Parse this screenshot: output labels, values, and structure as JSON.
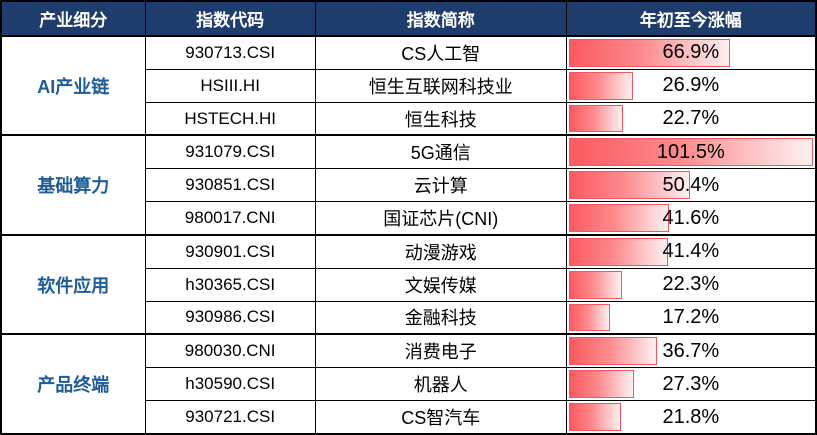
{
  "table": {
    "headers": [
      "产业细分",
      "指数代码",
      "指数简称",
      "年初至今涨幅"
    ],
    "bar_max": 101.5,
    "groups": [
      {
        "label": "AI产业链",
        "rows": [
          {
            "code": "930713.CSI",
            "name": "CS人工智",
            "change": "66.9%",
            "value": 66.9
          },
          {
            "code": "HSIII.HI",
            "name": "恒生互联网科技业",
            "change": "26.9%",
            "value": 26.9
          },
          {
            "code": "HSTECH.HI",
            "name": "恒生科技",
            "change": "22.7%",
            "value": 22.7
          }
        ]
      },
      {
        "label": "基础算力",
        "rows": [
          {
            "code": "931079.CSI",
            "name": "5G通信",
            "change": "101.5%",
            "value": 101.5
          },
          {
            "code": "930851.CSI",
            "name": "云计算",
            "change": "50.4%",
            "value": 50.4
          },
          {
            "code": "980017.CNI",
            "name": "国证芯片(CNI)",
            "change": "41.6%",
            "value": 41.6
          }
        ]
      },
      {
        "label": "软件应用",
        "rows": [
          {
            "code": "930901.CSI",
            "name": "动漫游戏",
            "change": "41.4%",
            "value": 41.4
          },
          {
            "code": "h30365.CSI",
            "name": "文娱传媒",
            "change": "22.3%",
            "value": 22.3
          },
          {
            "code": "930986.CSI",
            "name": "金融科技",
            "change": "17.2%",
            "value": 17.2
          }
        ]
      },
      {
        "label": "产品终端",
        "rows": [
          {
            "code": "980030.CNI",
            "name": "消费电子",
            "change": "36.7%",
            "value": 36.7
          },
          {
            "code": "h30590.CSI",
            "name": "机器人",
            "change": "27.3%",
            "value": 27.3
          },
          {
            "code": "930721.CSI",
            "name": "CS智汽车",
            "change": "21.8%",
            "value": 21.8
          }
        ]
      }
    ]
  },
  "colors": {
    "header_bg": "#1F3D6C",
    "header_text": "#FFFFFF",
    "group_text": "#1E5C97",
    "bar_start": "#FB5A60",
    "bar_end": "#FDEFEF",
    "bar_border": "#F4555E",
    "grid": "#000000"
  },
  "chart_data": {
    "type": "bar",
    "orientation": "horizontal",
    "title": "年初至今涨幅",
    "categories": [
      "CS人工智",
      "恒生互联网科技业",
      "恒生科技",
      "5G通信",
      "云计算",
      "国证芯片(CNI)",
      "动漫游戏",
      "文娱传媒",
      "金融科技",
      "消费电子",
      "机器人",
      "CS智汽车"
    ],
    "values": [
      66.9,
      26.9,
      22.7,
      101.5,
      50.4,
      41.6,
      41.4,
      22.3,
      17.2,
      36.7,
      27.3,
      21.8
    ],
    "unit": "%",
    "xlim": [
      0,
      101.5
    ],
    "group_labels": [
      "AI产业链",
      "基础算力",
      "软件应用",
      "产品终端"
    ],
    "legend_position": "none",
    "grid": false
  }
}
